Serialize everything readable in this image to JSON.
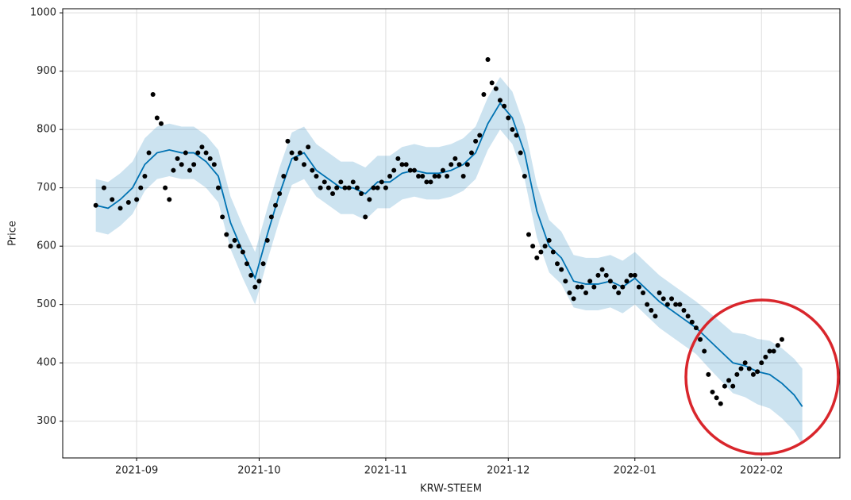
{
  "chart_data": {
    "type": "forecast",
    "x_label": "KRW-STEEM",
    "y_label": "Price",
    "xlim": [
      -18.1,
      172.2
    ],
    "ylim": [
      237,
      1007
    ],
    "xticks": [
      {
        "value": 0,
        "label": "2021-09"
      },
      {
        "value": 30,
        "label": "2021-10"
      },
      {
        "value": 61,
        "label": "2021-11"
      },
      {
        "value": 91,
        "label": "2021-12"
      },
      {
        "value": 122,
        "label": "2022-01"
      },
      {
        "value": 153,
        "label": "2022-02"
      }
    ],
    "yticks": [
      300,
      400,
      500,
      600,
      700,
      800,
      900,
      1000
    ],
    "grid": true,
    "series": [
      {
        "type": "scatter",
        "color": "#000000",
        "x": [
          -10,
          -8,
          -6,
          -4,
          -2,
          0,
          1,
          2,
          3,
          4,
          5,
          6,
          7,
          8,
          9,
          10,
          11,
          12,
          13,
          14,
          15,
          16,
          17,
          18,
          19,
          20,
          21,
          22,
          23,
          24,
          25,
          26,
          27,
          28,
          29,
          30,
          31,
          32,
          33,
          34,
          35,
          36,
          37,
          38,
          39,
          40,
          41,
          42,
          43,
          44,
          45,
          46,
          47,
          48,
          49,
          50,
          51,
          52,
          53,
          54,
          55,
          56,
          57,
          58,
          59,
          60,
          61,
          62,
          63,
          64,
          65,
          66,
          67,
          68,
          69,
          70,
          71,
          72,
          73,
          74,
          75,
          76,
          77,
          78,
          79,
          80,
          81,
          82,
          83,
          84,
          85,
          86,
          87,
          88,
          89,
          90,
          91,
          92,
          93,
          94,
          95,
          96,
          97,
          98,
          99,
          100,
          101,
          102,
          103,
          104,
          105,
          106,
          107,
          108,
          109,
          110,
          111,
          112,
          113,
          114,
          115,
          116,
          117,
          118,
          119,
          120,
          121,
          122,
          123,
          124,
          125,
          126,
          127,
          128,
          129,
          130,
          131,
          132,
          133,
          134,
          135,
          136,
          137,
          138,
          139,
          140,
          141,
          142,
          143,
          144,
          145,
          146,
          147,
          148,
          149,
          150,
          151,
          152,
          153,
          154,
          155,
          156,
          157,
          158
        ],
        "values": [
          670,
          700,
          680,
          665,
          675,
          680,
          700,
          720,
          760,
          860,
          820,
          810,
          700,
          680,
          730,
          750,
          740,
          760,
          730,
          740,
          760,
          770,
          760,
          750,
          740,
          700,
          650,
          620,
          600,
          610,
          600,
          590,
          570,
          550,
          530,
          540,
          570,
          610,
          650,
          670,
          690,
          720,
          780,
          760,
          750,
          760,
          740,
          770,
          730,
          720,
          700,
          710,
          700,
          690,
          700,
          710,
          700,
          700,
          710,
          700,
          690,
          650,
          680,
          700,
          700,
          710,
          700,
          720,
          730,
          750,
          740,
          740,
          730,
          730,
          720,
          720,
          710,
          710,
          720,
          720,
          730,
          720,
          740,
          750,
          740,
          720,
          740,
          760,
          780,
          790,
          860,
          920,
          880,
          870,
          850,
          840,
          820,
          800,
          790,
          760,
          720,
          620,
          600,
          580,
          590,
          600,
          610,
          590,
          570,
          560,
          540,
          520,
          510,
          530,
          530,
          520,
          540,
          530,
          550,
          560,
          550,
          540,
          530,
          520,
          530,
          540,
          550,
          550,
          530,
          520,
          500,
          490,
          480,
          520,
          510,
          500,
          510,
          500,
          500,
          490,
          480,
          470,
          460,
          440,
          420,
          380,
          350,
          340,
          330,
          360,
          370,
          360,
          380,
          390,
          400,
          390,
          380,
          385,
          400,
          410,
          420,
          420,
          430,
          440
        ]
      },
      {
        "type": "line",
        "color": "#0072b2",
        "band_color": "#0072b2",
        "x": [
          -10,
          -7,
          -4,
          -1,
          2,
          5,
          8,
          11,
          14,
          17,
          20,
          23,
          26,
          29,
          32,
          35,
          38,
          41,
          44,
          47,
          50,
          53,
          56,
          59,
          62,
          65,
          68,
          71,
          74,
          77,
          80,
          83,
          86,
          89,
          92,
          95,
          98,
          101,
          104,
          107,
          110,
          113,
          116,
          119,
          122,
          125,
          128,
          131,
          134,
          137,
          140,
          143,
          146,
          149,
          152,
          155,
          158,
          161,
          163
        ],
        "values": [
          670,
          665,
          680,
          700,
          740,
          760,
          765,
          760,
          760,
          745,
          720,
          640,
          590,
          545,
          620,
          690,
          750,
          760,
          730,
          715,
          700,
          700,
          690,
          710,
          710,
          725,
          730,
          725,
          725,
          730,
          740,
          760,
          810,
          845,
          820,
          760,
          660,
          600,
          580,
          540,
          535,
          535,
          540,
          530,
          545,
          525,
          505,
          490,
          475,
          460,
          440,
          420,
          400,
          395,
          385,
          380,
          365,
          345,
          325
        ],
        "lower": [
          625,
          620,
          635,
          655,
          695,
          715,
          720,
          715,
          715,
          700,
          675,
          595,
          545,
          500,
          575,
          645,
          705,
          715,
          685,
          670,
          655,
          655,
          645,
          665,
          665,
          680,
          685,
          680,
          680,
          685,
          695,
          715,
          765,
          800,
          775,
          715,
          615,
          555,
          535,
          495,
          490,
          490,
          495,
          485,
          500,
          480,
          460,
          445,
          430,
          415,
          392,
          370,
          348,
          341,
          329,
          322,
          305,
          283,
          260
        ],
        "upper": [
          715,
          710,
          725,
          745,
          785,
          805,
          810,
          805,
          805,
          790,
          765,
          685,
          635,
          590,
          665,
          735,
          795,
          805,
          775,
          760,
          745,
          745,
          735,
          755,
          755,
          770,
          775,
          770,
          770,
          775,
          785,
          805,
          855,
          890,
          865,
          805,
          705,
          645,
          625,
          585,
          580,
          580,
          585,
          575,
          590,
          570,
          550,
          535,
          520,
          505,
          488,
          470,
          452,
          449,
          441,
          438,
          425,
          407,
          390
        ]
      }
    ]
  }
}
